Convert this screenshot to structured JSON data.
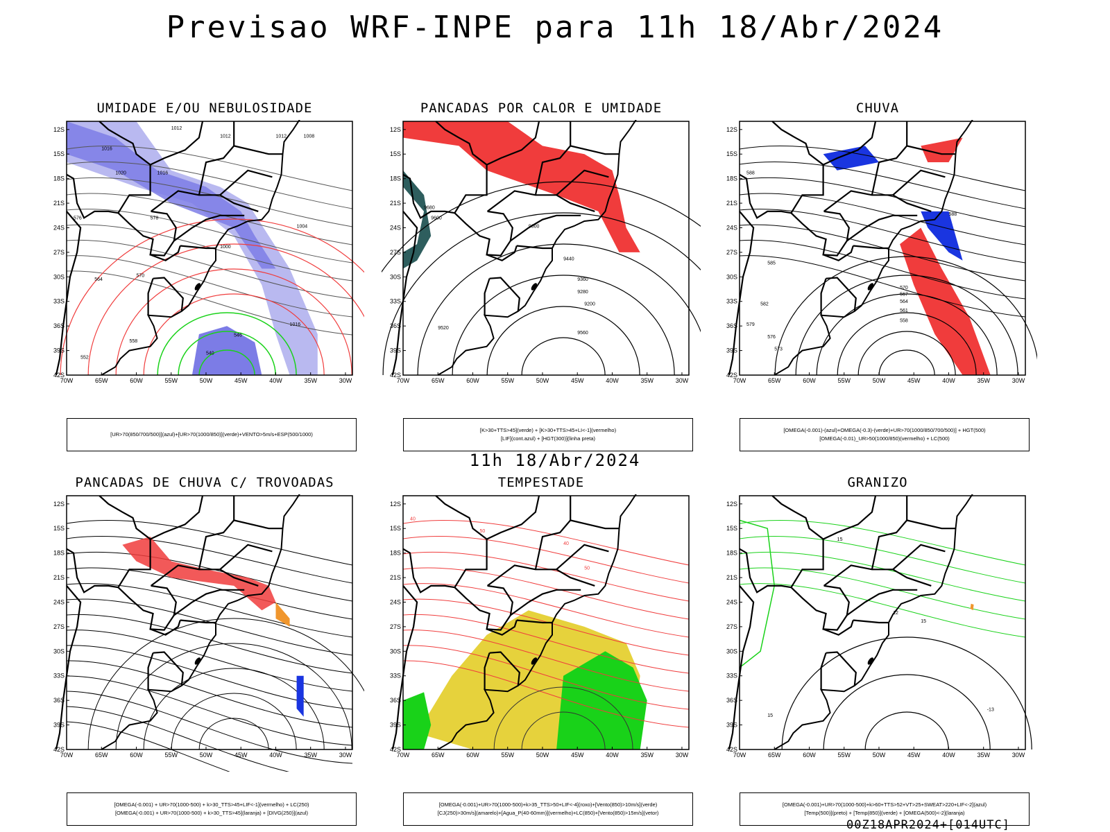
{
  "page": {
    "title": "Previsao WRF-INPE  para 11h 18/Abr/2024",
    "subtitle": "11h 18/Abr/2024",
    "footer": "00Z18APR2024+[014UTC]"
  },
  "axes": {
    "lat_labels": [
      "12S",
      "15S",
      "18S",
      "21S",
      "24S",
      "27S",
      "30S",
      "33S",
      "36S",
      "39S",
      "42S"
    ],
    "lon_labels": [
      "70W",
      "65W",
      "60W",
      "55W",
      "50W",
      "45W",
      "40W",
      "35W",
      "30W"
    ]
  },
  "colors": {
    "frame": "#000000",
    "blue": "#1a35e0",
    "light_blue": "#b9b9f0",
    "mid_blue": "#7c7ce6",
    "green": "#19d219",
    "red": "#f03c3c",
    "dark_teal": "#2e5e5e",
    "yellow": "#e6d23c",
    "orange": "#f0962d"
  },
  "panels": [
    {
      "id": "umidade",
      "title": "UMIDADE E/OU NEBULOSIDADE",
      "legend_lines": [
        "[UR>70(850/700/500)](azul)+[UR>70(1000/850)](verde)+VENTO>5m/s+ESP(500/1000)"
      ],
      "contour_labels": [
        "1012",
        "1016",
        "1020",
        "1016",
        "1012",
        "1012",
        "1004",
        "1000",
        "578",
        "576",
        "570",
        "564",
        "558",
        "552",
        "546",
        "540",
        "1016",
        "1008"
      ]
    },
    {
      "id": "pancadas_calor",
      "title": "PANCADAS POR CALOR E UMIDADE",
      "legend_lines": [
        "[K>30+TTS>45](verde) + [K>30+TTS>45+LI<-1](vermelho)",
        "[LIF](cont.azul) + [HGT(300)](linha preta)"
      ],
      "contour_labels": [
        "9680",
        "9600",
        "9520",
        "9440",
        "9360",
        "9280",
        "9200",
        "9560",
        "9600"
      ]
    },
    {
      "id": "chuva",
      "title": "CHUVA",
      "legend_lines": [
        "[OMEGA(-0.001)-(azul)+OMEGA(-0.3)-(verde)+UR>70(1000/850/700/500)] + HGT(500)",
        "[OMEGA(-0.01)_UR>50(1000/850)(vermelho) + LC(500)"
      ],
      "contour_labels": [
        "588",
        "585",
        "582",
        "579",
        "576",
        "573",
        "570",
        "567",
        "564",
        "561",
        "558",
        "588"
      ]
    },
    {
      "id": "trovoadas",
      "title": "PANCADAS DE CHUVA C/ TROVOADAS",
      "legend_lines": [
        "[OMEGA(-0.001) + UR>70(1000-500) + k>30_TTS>45+LIF<-1](vermelho) + LC(250)",
        "[OMEGA(-0.001) + UR>70(1000-500) + k>30_TTS>45](laranja) + [DIVG(250)](azul)"
      ],
      "contour_labels": []
    },
    {
      "id": "tempestade",
      "title": "TEMPESTADE",
      "legend_lines": [
        "[OMEGA(-0.001)+UR>70(1000-500)+k>35_TTS>50+LIF<-4](roxo)+[Vento(850)>10m/s](verde)",
        "[CJ(250)>30m/s](amarelo)+[Agua_P(40-60mm)](vermelho)+LC(850)+[Vento(850)>15m/s](vetor)"
      ],
      "contour_labels": [
        "40",
        "50",
        "40",
        "50"
      ]
    },
    {
      "id": "granizo",
      "title": "GRANIZO",
      "legend_lines": [
        "[OMEGA(-0.001)+UR>70(1000-500)+k>60+TTS>52+VT>25+SWEAT>220+LIF<-2](azul)",
        "[Temp(500)](preto) + [Temp(850)](verde) + [OMEGA(500)<-2](laranja)"
      ],
      "contour_labels": [
        "15",
        "12",
        "15",
        "-13",
        "15"
      ]
    }
  ]
}
